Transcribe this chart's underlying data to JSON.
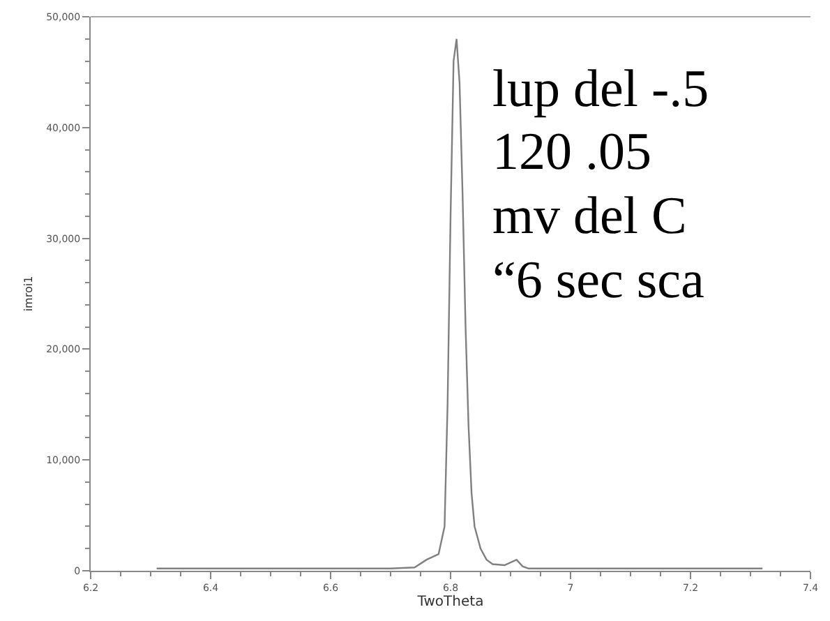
{
  "chart_data": {
    "type": "line",
    "xlabel": "TwoTheta",
    "ylabel": "imroi1",
    "x": [
      6.31,
      6.5,
      6.7,
      6.74,
      6.76,
      6.78,
      6.79,
      6.795,
      6.8,
      6.805,
      6.81,
      6.815,
      6.82,
      6.825,
      6.83,
      6.835,
      6.84,
      6.85,
      6.86,
      6.87,
      6.89,
      6.91,
      6.92,
      6.93,
      7.0,
      7.2,
      7.32
    ],
    "series": [
      {
        "color": "#808080",
        "values": [
          200,
          200,
          200,
          300,
          1000,
          1500,
          4000,
          15000,
          32000,
          46000,
          48000,
          44000,
          34000,
          22000,
          13000,
          7000,
          4000,
          2000,
          1000,
          600,
          500,
          1000,
          400,
          200,
          200,
          200,
          200
        ]
      }
    ],
    "xlim": [
      6.2,
      7.4
    ],
    "xticks": [
      6.2,
      6.4,
      6.6,
      6.8,
      7,
      7.2,
      7.4
    ],
    "ylim": [
      0,
      50000
    ],
    "yticks": [
      0,
      {
        "value": 10000,
        "label": "10,000"
      },
      {
        "value": 20000,
        "label": "20,000"
      },
      {
        "value": 30000,
        "label": "30,000"
      },
      {
        "value": 40000,
        "label": "40,000"
      },
      {
        "value": 50000,
        "label": "50,000"
      }
    ],
    "legend": false,
    "marker": "none",
    "line_style": "solid",
    "annotations": [
      "lup del -.5",
      "120 .05",
      "mv del C",
      "“6 sec sca"
    ]
  }
}
